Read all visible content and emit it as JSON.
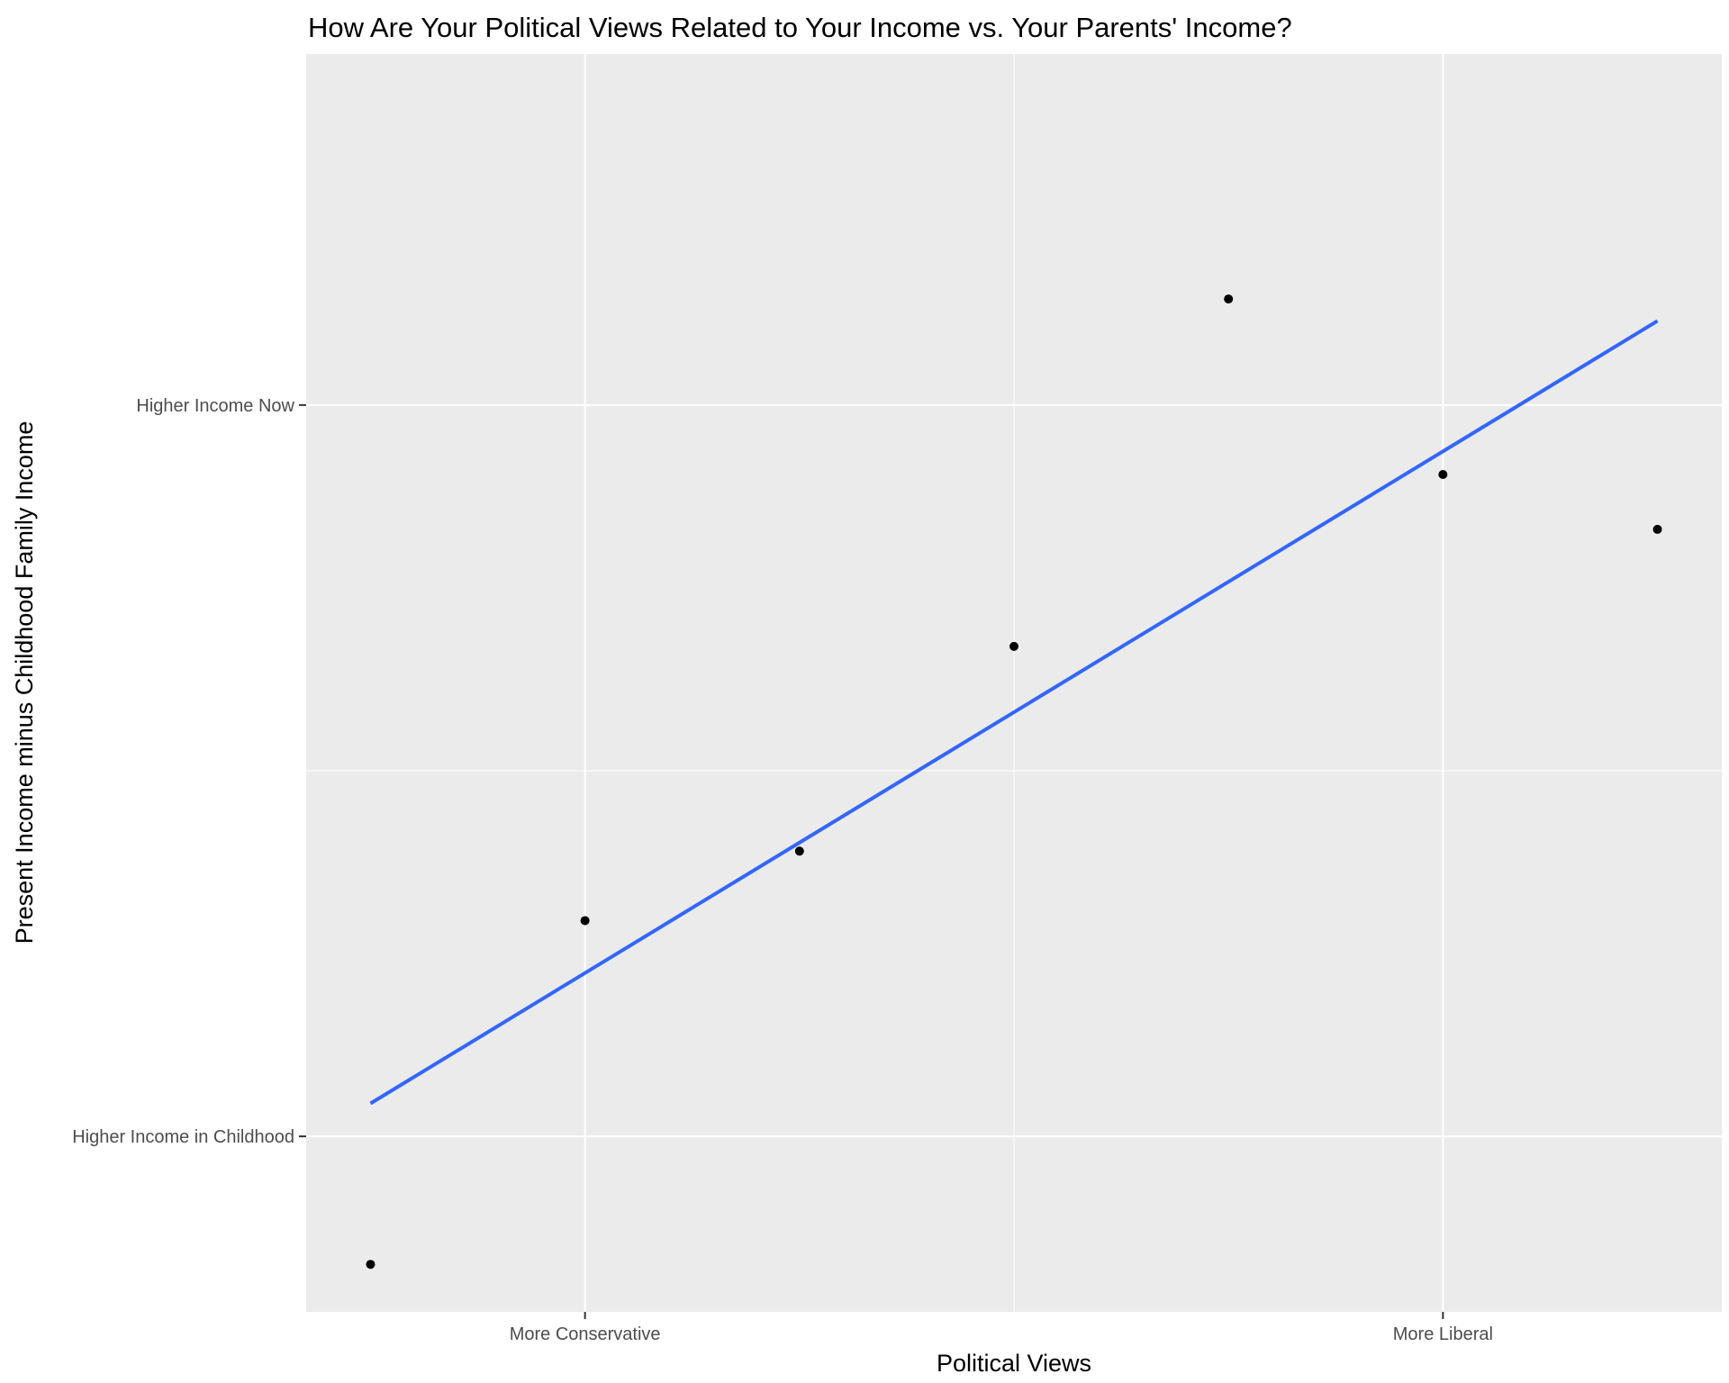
{
  "chart_data": {
    "type": "scatter",
    "title": "How Are Your Political Views Related to Your Income vs. Your Parents' Income?",
    "xlabel": "Political Views",
    "ylabel": "Present Income minus Childhood Family Income",
    "x_tick_labels": [
      {
        "value": 2,
        "label": "More Conservative"
      },
      {
        "value": 6,
        "label": "More Liberal"
      }
    ],
    "y_tick_labels": [
      {
        "value": -1.0,
        "label": "Higher Income in Childhood"
      },
      {
        "value": 1.0,
        "label": "Higher Income Now"
      }
    ],
    "xlim": [
      0.7,
      7.3
    ],
    "ylim": [
      -1.48,
      1.96
    ],
    "points": [
      {
        "x": 1,
        "y": -1.35
      },
      {
        "x": 2,
        "y": -0.41
      },
      {
        "x": 3,
        "y": -0.22
      },
      {
        "x": 4,
        "y": 0.34
      },
      {
        "x": 5,
        "y": 1.29
      },
      {
        "x": 6,
        "y": 0.81
      },
      {
        "x": 7,
        "y": 0.66
      }
    ],
    "trend_line": {
      "type": "linear",
      "x": [
        1,
        7
      ],
      "y": [
        -0.91,
        1.23
      ],
      "color": "#3366ff"
    },
    "grid": true,
    "panel_background": "#ebebeb",
    "grid_color": "#ffffff",
    "point_color": "#000000"
  }
}
